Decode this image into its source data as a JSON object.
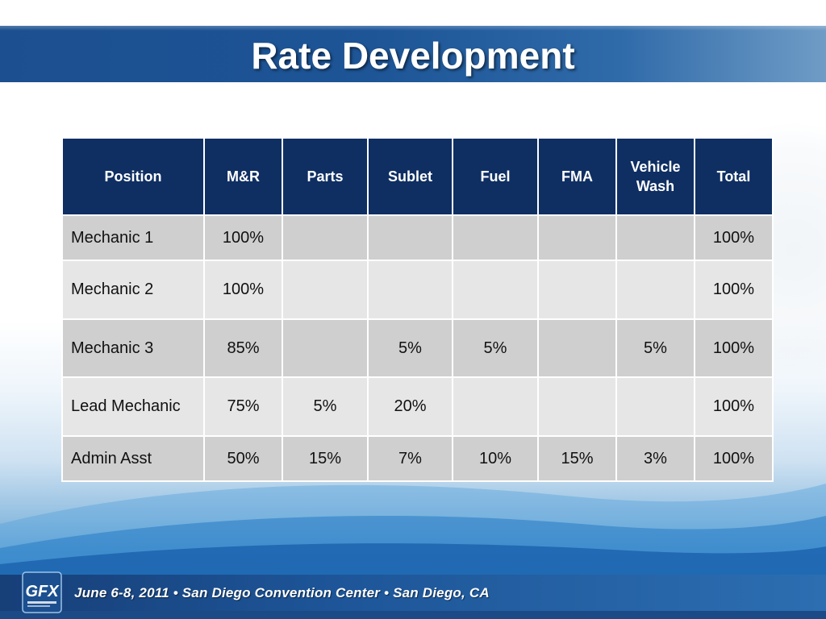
{
  "title": "Rate Development",
  "table": {
    "headers": [
      "Position",
      "M&R",
      "Parts",
      "Sublet",
      "Fuel",
      "FMA",
      "Vehicle\nWash",
      "Total"
    ],
    "rows": [
      [
        "Mechanic 1",
        "100%",
        "",
        "",
        "",
        "",
        "",
        "100%"
      ],
      [
        "Mechanic 2",
        "100%",
        "",
        "",
        "",
        "",
        "",
        "100%"
      ],
      [
        "Mechanic 3",
        "85%",
        "",
        "5%",
        "5%",
        "",
        "5%",
        "100%"
      ],
      [
        "Lead Mechanic",
        "75%",
        "5%",
        "20%",
        "",
        "",
        "",
        "100%"
      ],
      [
        "Admin Asst",
        "50%",
        "15%",
        "7%",
        "10%",
        "15%",
        "3%",
        "100%"
      ]
    ]
  },
  "footer": {
    "logo_text": "GFX",
    "event_text": "June 6-8, 2011 • San Diego Convention Center • San Diego, CA"
  },
  "colors": {
    "header_fill": "#0f2f63",
    "title_bar": "#1d5597",
    "row_dark": "#cfcfcf",
    "row_light": "#e6e6e6"
  }
}
